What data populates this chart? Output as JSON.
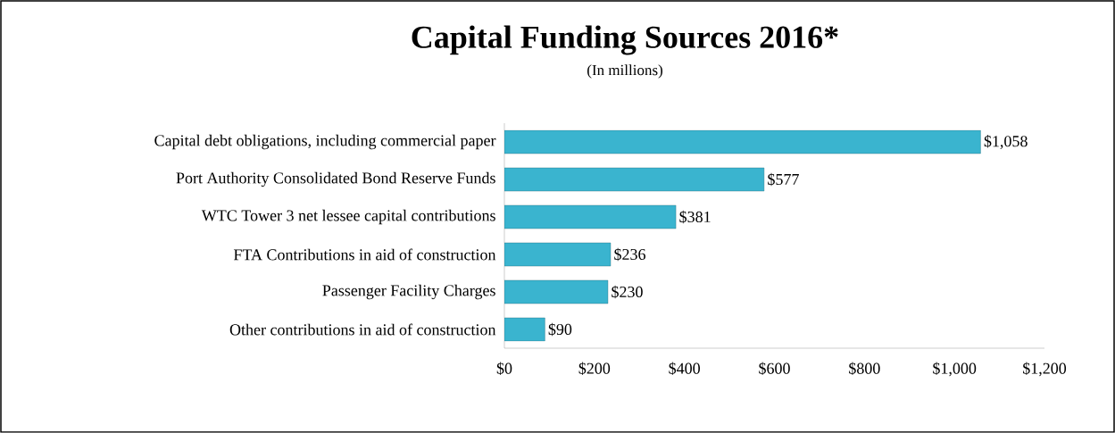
{
  "chart_data": {
    "type": "bar",
    "orientation": "horizontal",
    "title": "Capital Funding Sources 2016*",
    "subtitle": "(In millions)",
    "categories": [
      "Capital debt obligations, including commercial paper",
      "Port Authority Consolidated Bond Reserve Funds",
      "WTC Tower 3 net lessee capital contributions",
      "FTA Contributions in aid of construction",
      "Passenger Facility Charges",
      "Other contributions in aid of construction"
    ],
    "values": [
      1058,
      577,
      381,
      236,
      230,
      90
    ],
    "value_labels": [
      "$1,058",
      "$577",
      "$381",
      "$236",
      "$230",
      "$90"
    ],
    "color": "#3ab4cf",
    "xlim": [
      0,
      1200
    ],
    "xticks": [
      {
        "value": 0,
        "label": "$0"
      },
      {
        "value": 200,
        "label": "$200"
      },
      {
        "value": 400,
        "label": "$400"
      },
      {
        "value": 600,
        "label": "$600"
      },
      {
        "value": 800,
        "label": "$800"
      },
      {
        "value": 1000,
        "label": "$1,000"
      },
      {
        "value": 1200,
        "label": "$1,200"
      }
    ],
    "grid": false
  }
}
